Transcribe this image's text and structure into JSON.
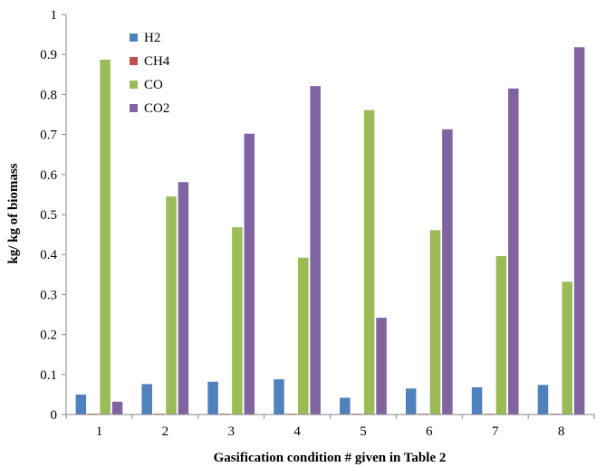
{
  "chart_data": {
    "type": "bar",
    "categories": [
      "1",
      "2",
      "3",
      "4",
      "5",
      "6",
      "7",
      "8"
    ],
    "series": [
      {
        "name": "H2",
        "color": "#4F81BD",
        "values": [
          0.05,
          0.076,
          0.082,
          0.088,
          0.042,
          0.065,
          0.068,
          0.074
        ]
      },
      {
        "name": "CH4",
        "color": "#C0504D",
        "values": [
          0.002,
          0.002,
          0.002,
          0.002,
          0.002,
          0.002,
          0.002,
          0.002
        ]
      },
      {
        "name": "CO",
        "color": "#9BBB59",
        "values": [
          0.887,
          0.545,
          0.468,
          0.392,
          0.761,
          0.461,
          0.396,
          0.332
        ]
      },
      {
        "name": "CO2",
        "color": "#8064A2",
        "values": [
          0.032,
          0.581,
          0.702,
          0.821,
          0.242,
          0.713,
          0.815,
          0.918
        ]
      }
    ],
    "xlabel": "Gasification condition # given in Table 2",
    "ylabel": "kg/ kg of biomass",
    "ylim": [
      0,
      1
    ],
    "yticks": [
      "0",
      "0.1",
      "0.2",
      "0.3",
      "0.4",
      "0.5",
      "0.6",
      "0.7",
      "0.8",
      "0.9",
      "1"
    ],
    "legend_position": "top-left",
    "grid": false
  }
}
